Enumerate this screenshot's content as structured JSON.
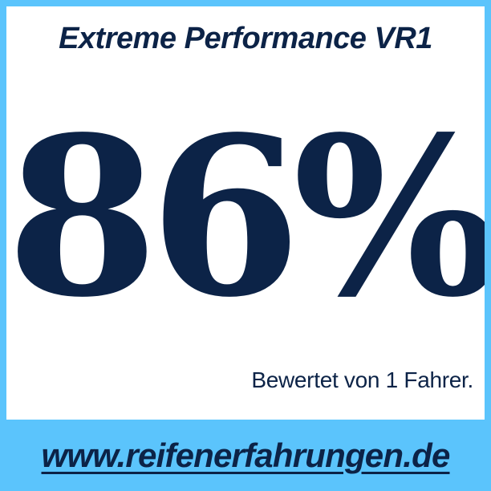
{
  "colors": {
    "accent": "#5BC4FC",
    "navy": "#0C2347",
    "background": "#FFFFFF"
  },
  "header": {
    "title": "Extreme Performance VR1"
  },
  "rating": {
    "percent_label": "86%",
    "caption": "Bewertet von 1 Fahrer."
  },
  "footer": {
    "url_label": "www.reifenerfahrungen.de"
  }
}
